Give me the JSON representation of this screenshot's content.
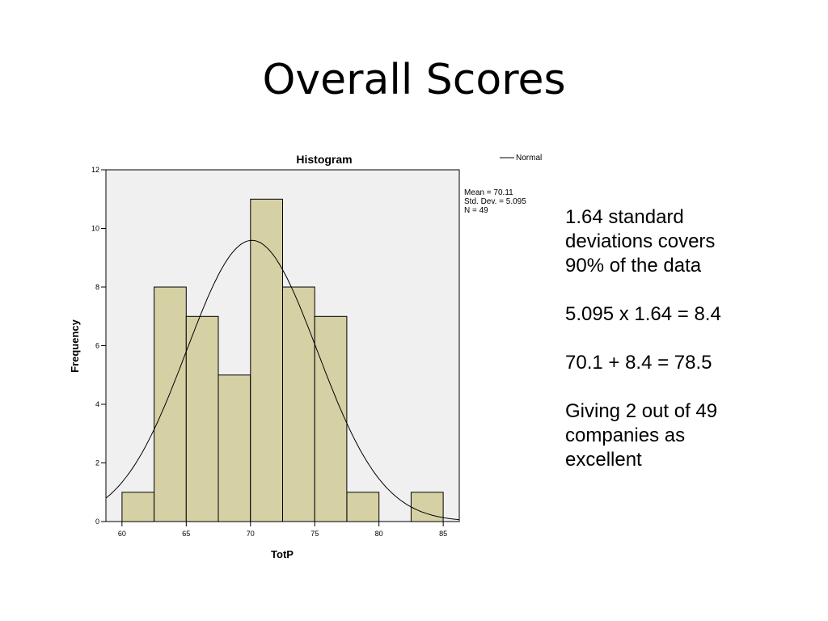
{
  "slide": {
    "title": "Overall Scores"
  },
  "notes": [
    "1.64 standard\ndeviations covers\n90% of the data",
    "5.095 x 1.64 = 8.4",
    "70.1 + 8.4 = 78.5",
    "Giving 2 out of 49\ncompanies as\nexcellent"
  ],
  "chart_data": {
    "type": "bar",
    "title": "Histogram",
    "xlabel": "TotP",
    "ylabel": "Frequency",
    "xlim": [
      58.75,
      86.25
    ],
    "ylim": [
      0,
      12
    ],
    "x_ticks": [
      60,
      65,
      70,
      75,
      80,
      85
    ],
    "y_ticks": [
      0,
      2,
      4,
      6,
      8,
      10,
      12
    ],
    "bins": [
      {
        "x0": 60,
        "x1": 62.5,
        "count": 1
      },
      {
        "x0": 62.5,
        "x1": 65,
        "count": 8
      },
      {
        "x0": 65,
        "x1": 67.5,
        "count": 7
      },
      {
        "x0": 67.5,
        "x1": 70,
        "count": 5
      },
      {
        "x0": 70,
        "x1": 72.5,
        "count": 11
      },
      {
        "x0": 72.5,
        "x1": 75,
        "count": 8
      },
      {
        "x0": 75,
        "x1": 77.5,
        "count": 7
      },
      {
        "x0": 77.5,
        "x1": 80,
        "count": 1
      },
      {
        "x0": 82.5,
        "x1": 85,
        "count": 1
      }
    ],
    "stats": {
      "mean_label": "Mean = 70.11",
      "sd_label": "Std. Dev. = 5.095",
      "n_label": "N = 49",
      "mean": 70.11,
      "sd": 5.095,
      "n": 49,
      "bin_width": 2.5
    },
    "legend": {
      "label": "Normal",
      "position": "top-right"
    },
    "colors": {
      "bar_fill": "#d6d0a5",
      "plot_bg": "#f0f0f0",
      "curve": "#000000"
    }
  }
}
